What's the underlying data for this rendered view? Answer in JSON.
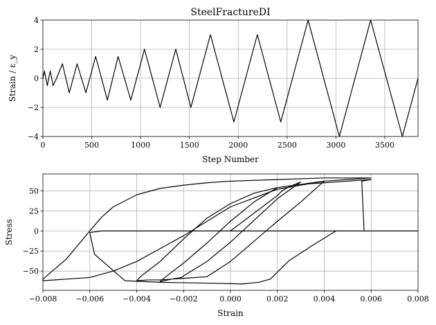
{
  "chart_data": [
    {
      "type": "line",
      "title": "SteelFractureDI",
      "xlabel": "Step Number",
      "ylabel": "Strain / ε_y",
      "xlim": [
        0,
        3840
      ],
      "ylim": [
        -4,
        4
      ],
      "xticks": [
        "0",
        "500",
        "1000",
        "1500",
        "2000",
        "2500",
        "3000",
        "3500"
      ],
      "xtick_values": [
        0,
        500,
        1000,
        1500,
        2000,
        2500,
        3000,
        3500
      ],
      "yticks": [
        "−4",
        "−2",
        "0",
        "2",
        "4"
      ],
      "ytick_values": [
        -4,
        -2,
        0,
        2,
        4
      ],
      "grid": true,
      "series": [
        {
          "color": "#000000",
          "x": [
            0,
            15,
            45,
            75,
            105,
            140,
            200,
            270,
            350,
            440,
            540,
            660,
            770,
            900,
            1040,
            1200,
            1360,
            1515,
            1715,
            1955,
            2195,
            2435,
            2715,
            3035,
            3355,
            3680,
            3840
          ],
          "y": [
            0,
            0.5,
            -0.5,
            0.5,
            -0.5,
            0,
            1,
            -1,
            1,
            -1,
            1.5,
            -1.5,
            1.5,
            -1.5,
            2,
            -2,
            2,
            -2,
            3,
            -3,
            3,
            -3,
            4,
            -4,
            4,
            -4,
            0
          ]
        }
      ]
    },
    {
      "type": "line",
      "title": "",
      "xlabel": "Strain",
      "ylabel": "Stress",
      "xlim": [
        -0.008,
        0.008
      ],
      "ylim": [
        -74,
        71
      ],
      "xticks": [
        "−0.008",
        "−0.006",
        "−0.004",
        "−0.002",
        "0.000",
        "0.002",
        "0.004",
        "0.006",
        "0.008"
      ],
      "xtick_values": [
        -0.008,
        -0.006,
        -0.004,
        -0.002,
        0,
        0.002,
        0.004,
        0.006,
        0.008
      ],
      "yticks": [
        "50",
        "25",
        "0",
        "−25",
        "−50"
      ],
      "ytick_values": [
        50,
        25,
        0,
        -25,
        -50
      ],
      "grid": true,
      "series": [
        {
          "color": "#000000",
          "x": [
            0,
            0.001,
            0.002,
            0.0022,
            0.0025,
            0.003,
            0.0028,
            0.002,
            0.001,
            0,
            -0.001,
            -0.002,
            -0.0021,
            -0.0025,
            -0.003,
            -0.0028,
            -0.002,
            -0.001,
            0,
            0.001,
            0.002,
            0.003,
            0.0035,
            0.004,
            0.0038,
            0.003,
            0.002,
            0.001,
            0,
            -0.001,
            -0.002,
            -0.003,
            -0.0035,
            -0.004,
            -0.0038,
            -0.003,
            -0.002,
            -0.001,
            0,
            0.001,
            0.002,
            0.003,
            0.004,
            0.005,
            0.006,
            0.0056,
            0.0057,
            0.004,
            0.002,
            0,
            -0.002,
            -0.004,
            -0.0055,
            -0.006,
            -0.0058,
            -0.0045,
            -0.003,
            -0.001,
            0.0005,
            0.0012,
            0.0017,
            0.0025,
            0.0035,
            0.0045,
            0.006,
            0.008
          ],
          "y": [
            0,
            22,
            44,
            50,
            55,
            61,
            57,
            40,
            13,
            -14,
            -38,
            -56,
            -58,
            -60,
            -63,
            -58,
            -40,
            -15,
            12,
            36,
            54,
            58,
            60,
            62,
            57,
            36,
            12,
            -13,
            -38,
            -57,
            -59,
            -61,
            -61,
            -62,
            -56,
            -38,
            -10,
            16,
            34,
            47,
            54,
            58,
            60,
            62,
            64,
            62,
            0,
            0,
            0,
            0,
            0,
            0,
            0,
            -2,
            -29,
            -62,
            -64,
            -65,
            -66,
            -64,
            -60,
            -37,
            -18,
            0,
            0,
            0
          ]
        },
        {
          "color": "#000000",
          "x": [
            0.006,
            0.004,
            0.002,
            0,
            -0.001,
            -0.002,
            -0.003,
            -0.004,
            -0.005,
            -0.0055,
            -0.006,
            -0.007,
            -0.008,
            -0.008,
            -0.006,
            -0.005,
            -0.004,
            -0.003,
            -0.002,
            -0.001,
            0,
            0.002,
            0.004,
            0.006
          ],
          "y": [
            66,
            66,
            64,
            62,
            60,
            57,
            53,
            45,
            30,
            17,
            0,
            -35,
            -60,
            -62,
            -58,
            -50,
            -38,
            -22,
            -6,
            12,
            30,
            52,
            62,
            66
          ]
        }
      ]
    }
  ]
}
